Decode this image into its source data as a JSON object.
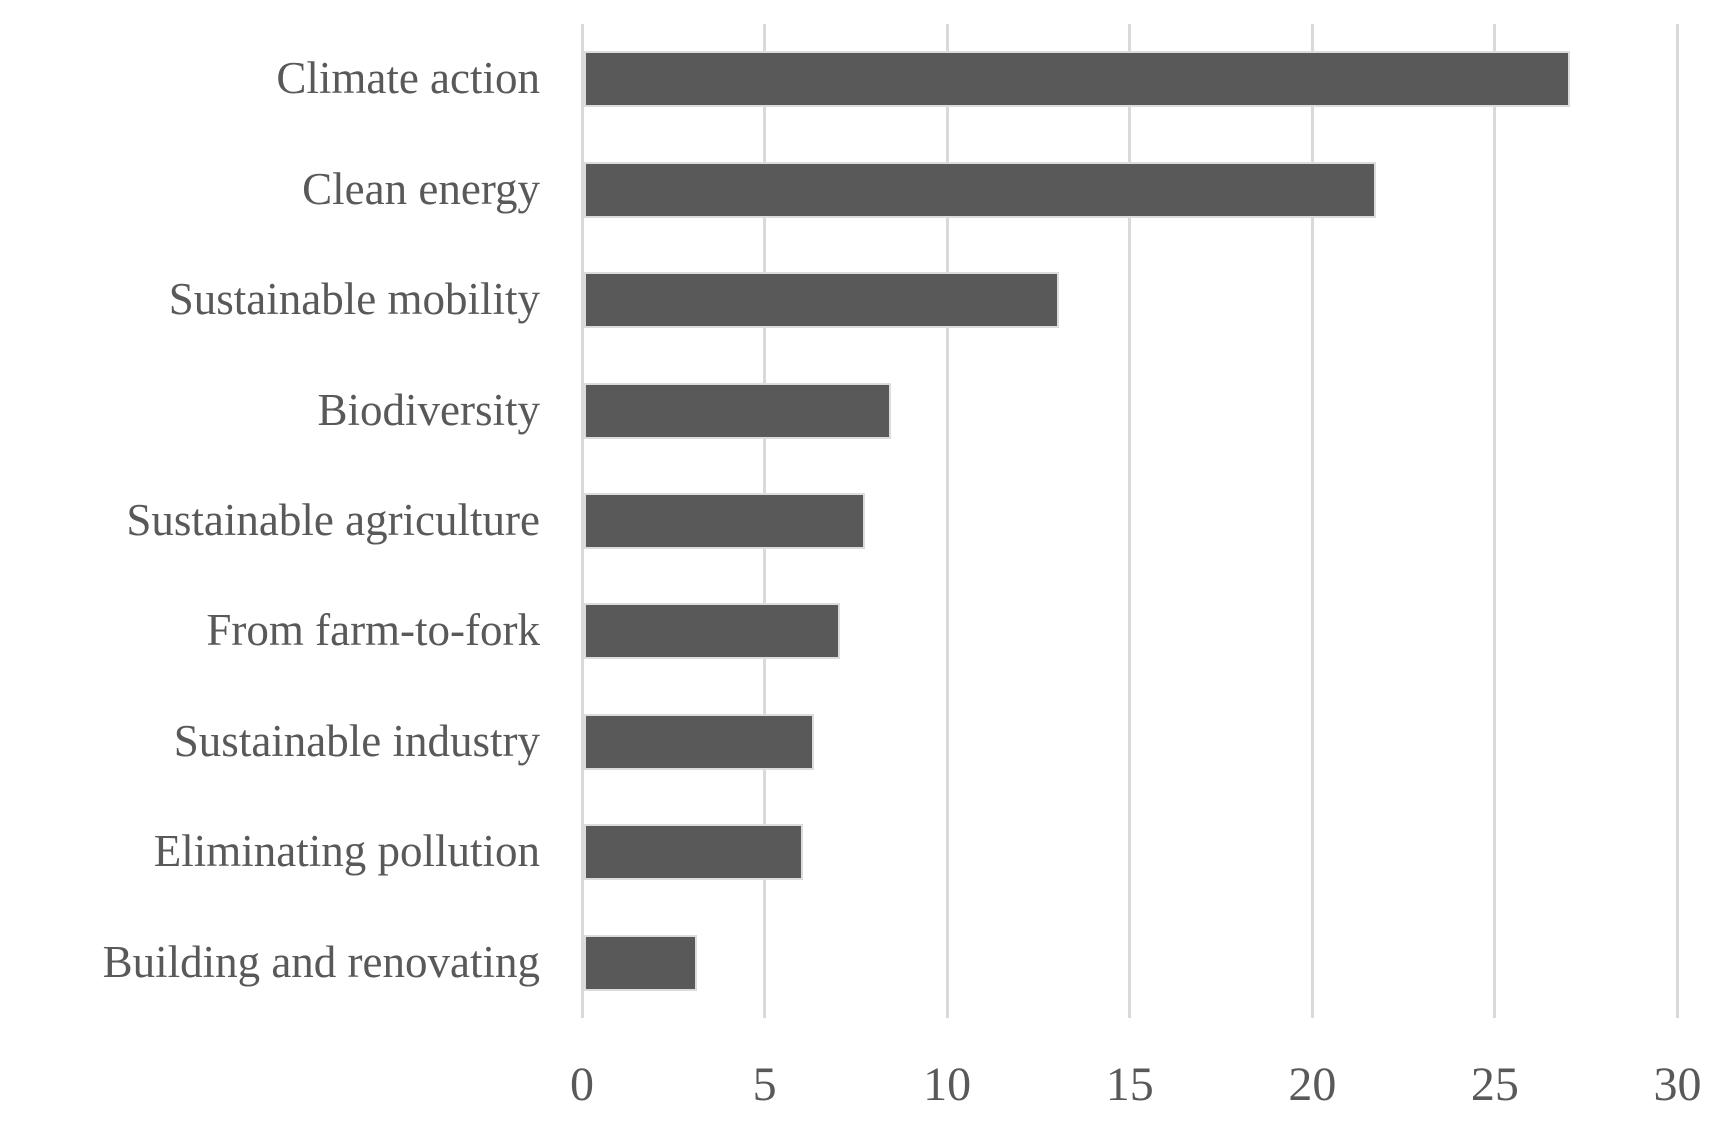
{
  "chart_data": {
    "type": "bar",
    "orientation": "horizontal",
    "title": "",
    "xlabel": "",
    "ylabel": "",
    "categories": [
      "Climate action",
      "Clean energy",
      "Sustainable mobility",
      "Biodiversity",
      "Sustainable agriculture",
      "From farm-to-fork",
      "Sustainable industry",
      "Eliminating pollution",
      "Building and renovating"
    ],
    "values": [
      27.0,
      21.7,
      13.0,
      8.4,
      7.7,
      7.0,
      6.3,
      6.0,
      3.1
    ],
    "xlim": [
      0,
      30
    ],
    "xticks": [
      0,
      5,
      10,
      15,
      20,
      25,
      30
    ],
    "grid": "vertical-gridlines-on",
    "legend": "none",
    "bar_color": "#595959",
    "bar_border_color": "#dcdcdc",
    "gridline_color": "#d9d9d9",
    "text_color": "#595959",
    "background_color": "#ffffff"
  }
}
